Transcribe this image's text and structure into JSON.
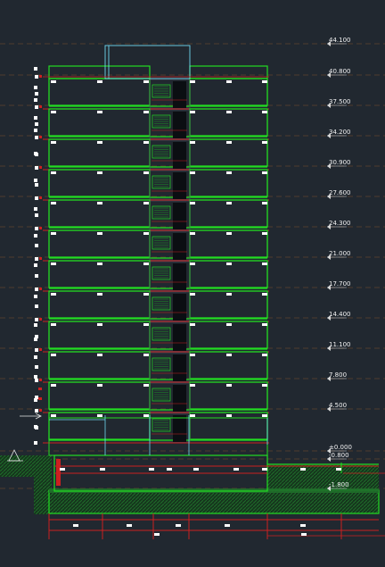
{
  "drawing": {
    "colors": {
      "background": "#212830",
      "wall": "#22dd22",
      "slab": "#cc2020",
      "glass": "#6fd8f0",
      "hatch": "#1f6e2a",
      "dim_dash": "#c8702a",
      "marker": "#ffffff",
      "core_dark": "#0b0e12"
    },
    "floor_count": 12,
    "levels": [
      {
        "label": "44.100"
      },
      {
        "label": "40.800"
      },
      {
        "label": "37.500"
      },
      {
        "label": "34.200"
      },
      {
        "label": "30.900"
      },
      {
        "label": "27.600"
      },
      {
        "label": "24.300"
      },
      {
        "label": "21.000"
      },
      {
        "label": "17.700"
      },
      {
        "label": "14.400"
      },
      {
        "label": "11.100"
      },
      {
        "label": "7.800"
      },
      {
        "label": "4.500"
      },
      {
        "label": "±0.000"
      },
      {
        "label": "-0.800"
      },
      {
        "label": "-1.800"
      }
    ]
  }
}
